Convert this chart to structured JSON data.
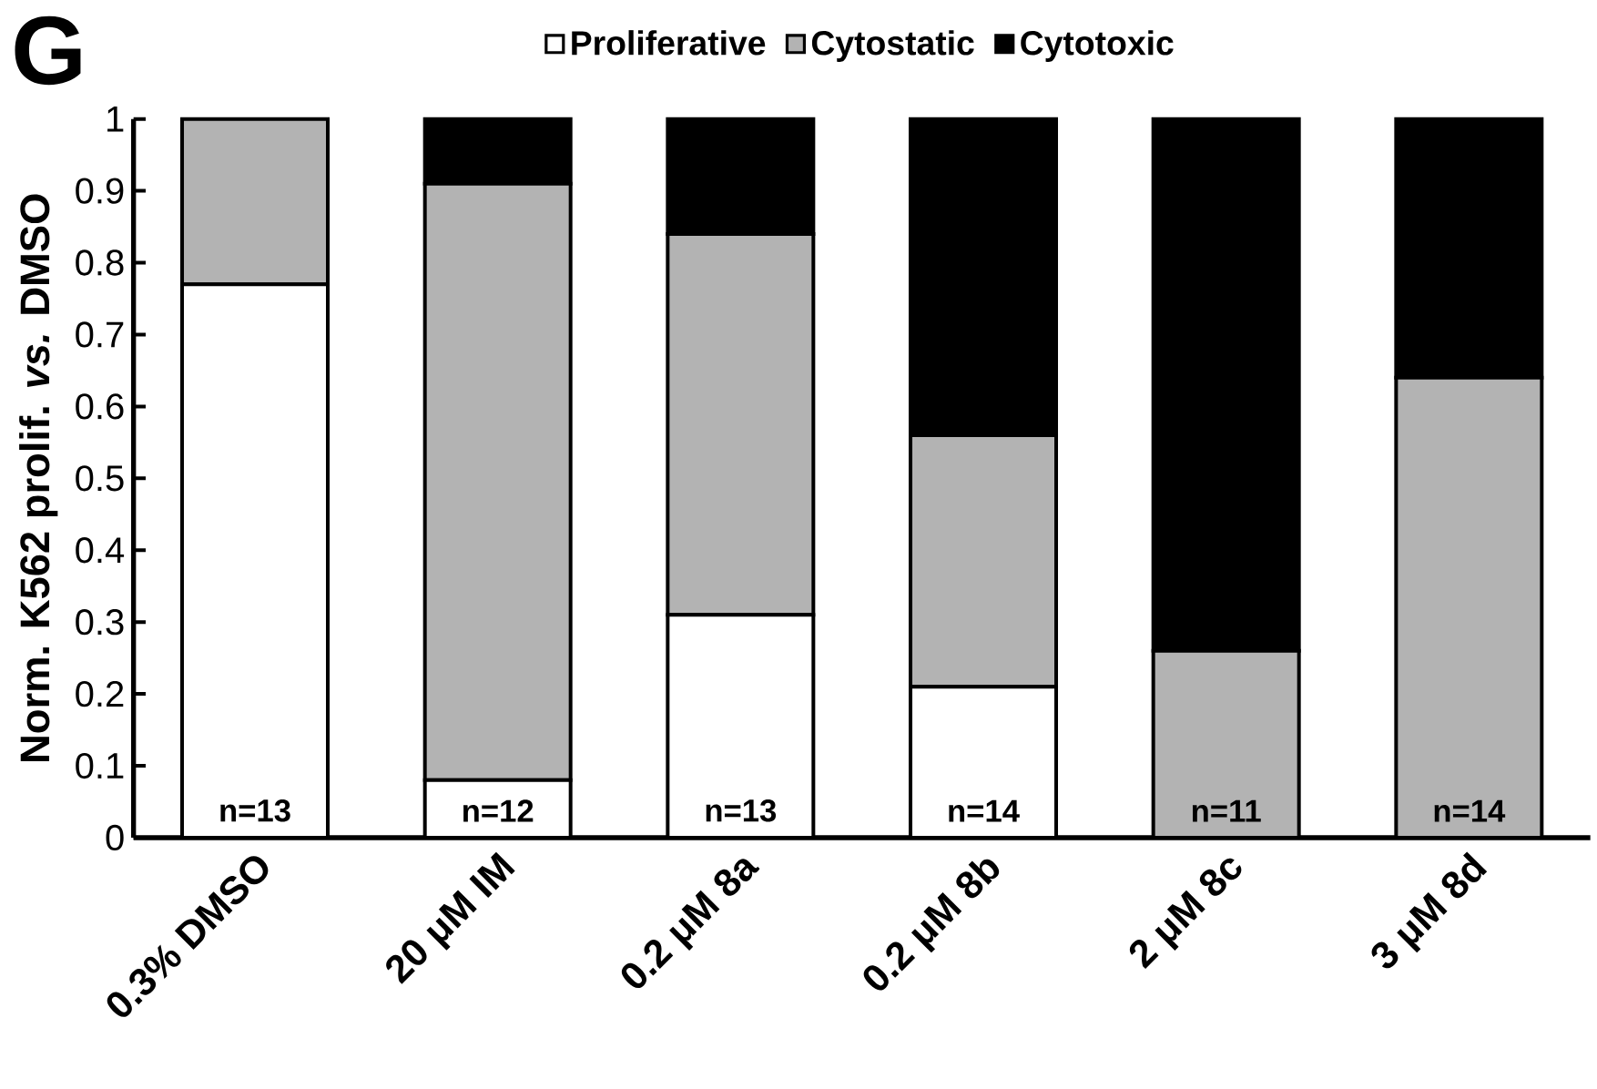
{
  "chart_data": {
    "type": "bar",
    "stacked": true,
    "ylabel": "Norm. K562 prolif. *vs.* DMSO",
    "categories": [
      "0.3% DMSO",
      "20 μM IM",
      "0.2 μM 8a",
      "0.2 μM 8b",
      "2 μM 8c",
      "3 μM 8d"
    ],
    "series": [
      {
        "name": "Proliferative",
        "color": "#ffffff",
        "values": [
          0.77,
          0.08,
          0.31,
          0.21,
          0,
          0
        ]
      },
      {
        "name": "Cytostatic",
        "color": "#b3b3b3",
        "values": [
          0.23,
          0.83,
          0.53,
          0.35,
          0.26,
          0.64
        ]
      },
      {
        "name": "Cytotoxic",
        "color": "#000000",
        "values": [
          0,
          0.09,
          0.16,
          0.44,
          0.74,
          0.36
        ]
      }
    ],
    "ylim": [
      0,
      1
    ],
    "yticks": [
      0,
      0.1,
      0.2,
      0.3,
      0.4,
      0.5,
      0.6,
      0.7,
      0.8,
      0.9,
      1
    ],
    "legend": "top",
    "annotations": [
      "G",
      "n=13",
      "n=12",
      "n=13",
      "n=14",
      "n=11",
      "n=14"
    ]
  }
}
